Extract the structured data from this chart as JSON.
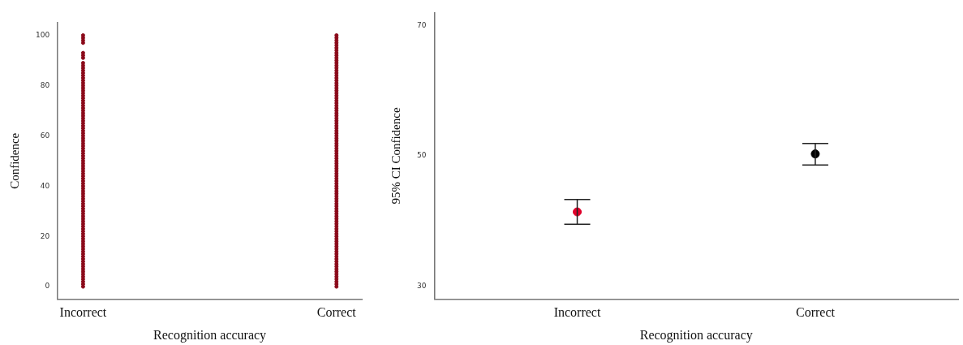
{
  "chart_data": [
    {
      "type": "scatter",
      "xlabel": "Recognition accuracy",
      "ylabel": "Confidence",
      "categories": [
        "Incorrect",
        "Correct"
      ],
      "ylim": [
        -5,
        105
      ],
      "yticks": [
        0,
        20,
        40,
        60,
        80,
        100
      ],
      "grid": false,
      "legend": false,
      "marker": "circle",
      "series": [
        {
          "color": "#8b0a1a",
          "x": [
            "Incorrect",
            "Incorrect",
            "Incorrect",
            "Incorrect",
            "Incorrect",
            "Incorrect",
            "Incorrect",
            "Incorrect",
            "Incorrect",
            "Incorrect",
            "Incorrect",
            "Incorrect",
            "Incorrect",
            "Incorrect",
            "Incorrect",
            "Incorrect",
            "Incorrect",
            "Incorrect",
            "Incorrect",
            "Incorrect",
            "Incorrect",
            "Incorrect",
            "Incorrect",
            "Incorrect",
            "Incorrect",
            "Incorrect",
            "Incorrect",
            "Incorrect",
            "Incorrect",
            "Incorrect",
            "Incorrect",
            "Incorrect",
            "Incorrect",
            "Incorrect",
            "Incorrect",
            "Incorrect",
            "Incorrect",
            "Incorrect",
            "Incorrect",
            "Incorrect",
            "Incorrect",
            "Incorrect",
            "Incorrect",
            "Incorrect",
            "Incorrect",
            "Incorrect",
            "Incorrect",
            "Incorrect",
            "Incorrect",
            "Incorrect",
            "Incorrect",
            "Incorrect",
            "Incorrect",
            "Incorrect",
            "Incorrect",
            "Incorrect",
            "Incorrect",
            "Incorrect",
            "Incorrect",
            "Incorrect",
            "Incorrect",
            "Incorrect",
            "Incorrect",
            "Incorrect",
            "Incorrect",
            "Incorrect",
            "Incorrect",
            "Incorrect",
            "Incorrect",
            "Incorrect",
            "Incorrect",
            "Incorrect",
            "Incorrect",
            "Incorrect",
            "Incorrect",
            "Incorrect",
            "Incorrect",
            "Incorrect",
            "Incorrect",
            "Incorrect",
            "Incorrect",
            "Incorrect",
            "Incorrect",
            "Incorrect",
            "Incorrect",
            "Incorrect",
            "Incorrect",
            "Incorrect",
            "Incorrect",
            "Incorrect",
            "Incorrect",
            "Incorrect",
            "Incorrect",
            "Incorrect",
            "Incorrect",
            "Incorrect",
            "Incorrect"
          ],
          "values": [
            0,
            1,
            2,
            3,
            4,
            5,
            6,
            7,
            8,
            9,
            10,
            11,
            12,
            13,
            14,
            15,
            16,
            17,
            18,
            19,
            20,
            21,
            22,
            23,
            24,
            25,
            26,
            27,
            28,
            29,
            30,
            31,
            32,
            33,
            34,
            35,
            36,
            37,
            38,
            39,
            40,
            41,
            42,
            43,
            44,
            45,
            46,
            47,
            48,
            49,
            50,
            51,
            52,
            53,
            54,
            55,
            56,
            57,
            58,
            59,
            60,
            61,
            62,
            63,
            64,
            65,
            66,
            67,
            68,
            69,
            70,
            71,
            72,
            73,
            74,
            75,
            76,
            77,
            78,
            79,
            80,
            81,
            82,
            83,
            84,
            85,
            86,
            87,
            88,
            89,
            91,
            92,
            93,
            97,
            98,
            99,
            100
          ]
        },
        {
          "color": "#8b0a1a",
          "x": [
            "Correct",
            "Correct",
            "Correct",
            "Correct",
            "Correct",
            "Correct",
            "Correct",
            "Correct",
            "Correct",
            "Correct",
            "Correct",
            "Correct",
            "Correct",
            "Correct",
            "Correct",
            "Correct",
            "Correct",
            "Correct",
            "Correct",
            "Correct",
            "Correct",
            "Correct",
            "Correct",
            "Correct",
            "Correct",
            "Correct",
            "Correct",
            "Correct",
            "Correct",
            "Correct",
            "Correct",
            "Correct",
            "Correct",
            "Correct",
            "Correct",
            "Correct",
            "Correct",
            "Correct",
            "Correct",
            "Correct",
            "Correct",
            "Correct",
            "Correct",
            "Correct",
            "Correct",
            "Correct",
            "Correct",
            "Correct",
            "Correct",
            "Correct",
            "Correct",
            "Correct",
            "Correct",
            "Correct",
            "Correct",
            "Correct",
            "Correct",
            "Correct",
            "Correct",
            "Correct",
            "Correct",
            "Correct",
            "Correct",
            "Correct",
            "Correct",
            "Correct",
            "Correct",
            "Correct",
            "Correct",
            "Correct",
            "Correct",
            "Correct",
            "Correct",
            "Correct",
            "Correct",
            "Correct",
            "Correct",
            "Correct",
            "Correct",
            "Correct",
            "Correct",
            "Correct",
            "Correct",
            "Correct",
            "Correct",
            "Correct",
            "Correct",
            "Correct",
            "Correct",
            "Correct",
            "Correct",
            "Correct",
            "Correct",
            "Correct",
            "Correct",
            "Correct",
            "Correct",
            "Correct",
            "Correct",
            "Correct",
            "Correct"
          ],
          "values": [
            0,
            1,
            2,
            3,
            4,
            5,
            6,
            7,
            8,
            9,
            10,
            11,
            12,
            13,
            14,
            15,
            16,
            17,
            18,
            19,
            20,
            21,
            22,
            23,
            24,
            25,
            26,
            27,
            28,
            29,
            30,
            31,
            32,
            33,
            34,
            35,
            36,
            37,
            38,
            39,
            40,
            41,
            42,
            43,
            44,
            45,
            46,
            47,
            48,
            49,
            50,
            51,
            52,
            53,
            54,
            55,
            56,
            57,
            58,
            59,
            60,
            61,
            62,
            63,
            64,
            65,
            66,
            67,
            68,
            69,
            70,
            71,
            72,
            73,
            74,
            75,
            76,
            77,
            78,
            79,
            80,
            81,
            82,
            83,
            84,
            85,
            86,
            87,
            88,
            89,
            90,
            91,
            92,
            93,
            94,
            95,
            96,
            97,
            98,
            99,
            100
          ]
        }
      ]
    },
    {
      "type": "scatter",
      "xlabel": "Recognition accuracy",
      "ylabel": "95% CI Confidence",
      "categories": [
        "Incorrect",
        "Correct"
      ],
      "ylim": [
        28,
        72
      ],
      "yticks": [
        30,
        50,
        70
      ],
      "grid": false,
      "legend": false,
      "marker": "circle",
      "values": [
        41.4,
        50.3
      ],
      "errors": [
        [
          39.5,
          43.3
        ],
        [
          48.6,
          51.9
        ]
      ],
      "colors": [
        "#e0002a",
        "#000000"
      ]
    }
  ]
}
